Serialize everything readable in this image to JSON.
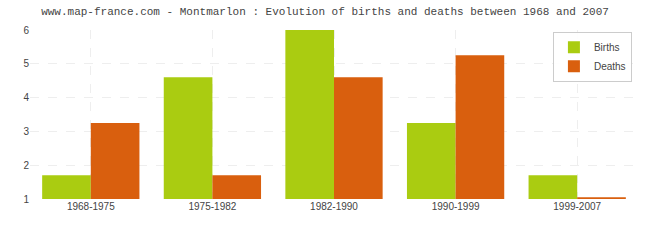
{
  "chart_data": {
    "type": "bar",
    "title": "www.map-france.com - Montmarlon : Evolution of births and deaths between 1968 and 2007",
    "categories": [
      "1968-1975",
      "1975-1982",
      "1982-1990",
      "1990-1999",
      "1999-2007"
    ],
    "series": [
      {
        "name": "Births",
        "color": "#aacc11",
        "values": [
          1.7,
          4.6,
          6.0,
          3.25,
          1.7
        ]
      },
      {
        "name": "Deaths",
        "color": "#d95f0e",
        "values": [
          3.25,
          1.7,
          4.6,
          5.25,
          1.05
        ]
      }
    ],
    "ylim": [
      1,
      6
    ],
    "yticks": [
      1,
      2,
      3,
      4,
      5,
      6
    ],
    "grid": true,
    "legend": "upper right"
  }
}
